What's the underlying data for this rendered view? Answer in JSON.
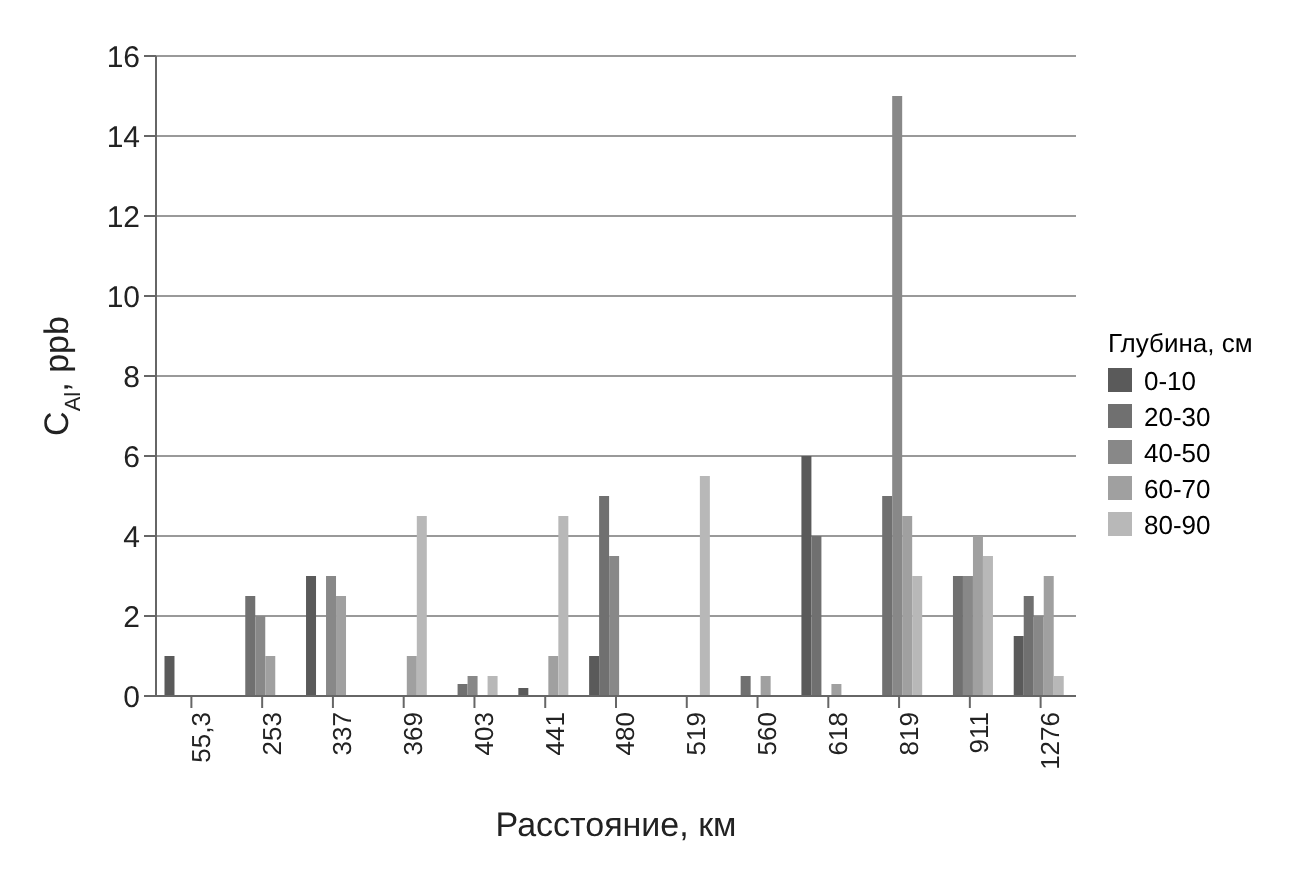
{
  "chart_data": {
    "type": "bar",
    "xlabel": "Расстояние, км",
    "ylabel": "C$_{Al}$, ppb",
    "legend_title": "Глубина, см",
    "categories": [
      "55,3",
      "253",
      "337",
      "369",
      "403",
      "441",
      "480",
      "519",
      "560",
      "618",
      "819",
      "911",
      "1276"
    ],
    "series": [
      {
        "name": "0-10",
        "color": "#5a5a5a",
        "values": [
          1,
          0,
          3,
          0,
          0,
          0.2,
          1,
          0,
          0,
          6,
          0,
          0,
          1.5
        ]
      },
      {
        "name": "20-30",
        "color": "#707070",
        "values": [
          0,
          2.5,
          0,
          0,
          0.3,
          0,
          5,
          0,
          0.5,
          4,
          5,
          3,
          2.5
        ]
      },
      {
        "name": "40-50",
        "color": "#888888",
        "values": [
          0,
          2,
          3,
          0,
          0.5,
          0,
          3.5,
          0,
          0,
          0,
          15,
          3,
          2
        ]
      },
      {
        "name": "60-70",
        "color": "#a0a0a0",
        "values": [
          0,
          1,
          2.5,
          1,
          0,
          1,
          0,
          0,
          0.5,
          0.3,
          4.5,
          4,
          3
        ]
      },
      {
        "name": "80-90",
        "color": "#b8b8b8",
        "values": [
          0,
          0,
          0,
          4.5,
          0.5,
          4.5,
          0,
          5.5,
          0,
          0,
          3,
          3.5,
          0.5
        ]
      }
    ],
    "ylim": [
      0,
      16
    ],
    "yticks": [
      0,
      2,
      4,
      6,
      8,
      10,
      12,
      14,
      16
    ],
    "grid": "y",
    "legend": "right"
  }
}
